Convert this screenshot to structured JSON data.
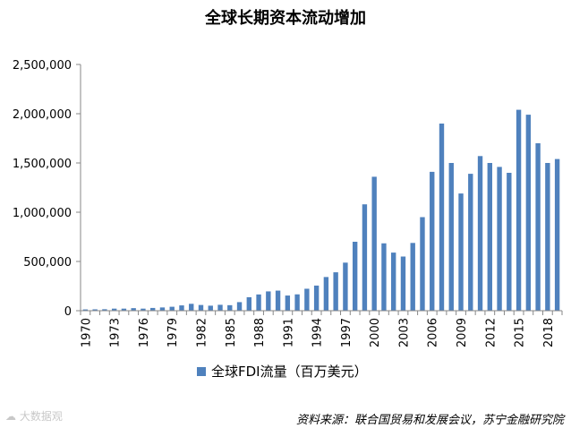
{
  "colors": {
    "bar": "#4f81bd",
    "axis": "#878787"
  },
  "watermark": "大数据观",
  "chart_data": {
    "type": "bar",
    "title": "全球长期资本流动增加",
    "legend": "全球FDI流量（百万美元）",
    "source": "资料来源：联合国贸易和发展会议，苏宁金融研究院",
    "ylim": [
      0,
      2500000
    ],
    "yticks": [
      0,
      500000,
      1000000,
      1500000,
      2000000,
      2500000
    ],
    "ytick_labels": [
      "0",
      "500,000",
      "1,000,000",
      "1,500,000",
      "2,000,000",
      "2,500,000"
    ],
    "xtick_labels": [
      "1970",
      "1973",
      "1976",
      "1979",
      "1982",
      "1985",
      "1988",
      "1991",
      "1994",
      "1997",
      "2000",
      "2003",
      "2006",
      "2009",
      "2012",
      "2015",
      "2018"
    ],
    "categories": [
      1970,
      1971,
      1972,
      1973,
      1974,
      1975,
      1976,
      1977,
      1978,
      1979,
      1980,
      1981,
      1982,
      1983,
      1984,
      1985,
      1986,
      1987,
      1988,
      1989,
      1990,
      1991,
      1992,
      1993,
      1994,
      1995,
      1996,
      1997,
      1998,
      1999,
      2000,
      2001,
      2002,
      2003,
      2004,
      2005,
      2006,
      2007,
      2008,
      2009,
      2010,
      2011,
      2012,
      2013,
      2014,
      2015,
      2016,
      2017,
      2018,
      2019
    ],
    "values": [
      13000,
      14000,
      15000,
      21000,
      21000,
      26000,
      21000,
      28000,
      33000,
      40000,
      54000,
      70000,
      58000,
      51000,
      60000,
      56000,
      87000,
      137000,
      165000,
      196000,
      204000,
      154000,
      166000,
      223000,
      255000,
      342000,
      390000,
      488000,
      700000,
      1080000,
      1360000,
      684000,
      590000,
      550000,
      688000,
      950000,
      1410000,
      1900000,
      1500000,
      1190000,
      1390000,
      1570000,
      1500000,
      1460000,
      1400000,
      2040000,
      1990000,
      1700000,
      1500000,
      1540000
    ]
  }
}
